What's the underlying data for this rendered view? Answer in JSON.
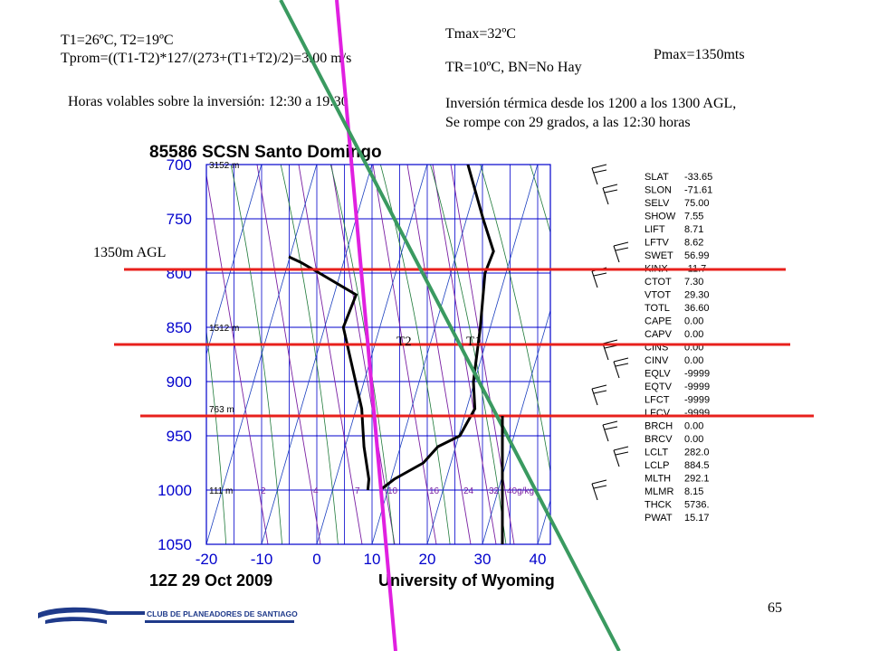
{
  "annotations": {
    "t1_t2": "T1=26ºC, T2=19ºC",
    "tprom": "Tprom=((T1-T2)*127/(273+(T1+T2)/2)=3.00 m/s",
    "tmax": "Tmax=32ºC",
    "pmax": "Pmax=1350mts",
    "tr_bn": "TR=10ºC, BN=No Hay",
    "horas": "Horas volables sobre la inversión: 12:30 a 19:30",
    "inversion_1": "Inversión térmica desde los 1200 a los 1300 AGL,",
    "inversion_2": "Se rompe con 29 grados, a las 12:30 horas",
    "agl_label": "1350m AGL",
    "label_t2": "T2",
    "label_t1": "T1"
  },
  "logo": {
    "text": "CLUB DE PLANEADORES DE SANTIAGO"
  },
  "page_number": "65",
  "colors": {
    "grid": "#0000cc",
    "mixing": "#7a1fa2",
    "dry_adiabat": "#1f7a3a",
    "red_line": "#e8201c",
    "magenta_line": "#e020e0",
    "green_line": "#3a9a60",
    "profile": "#000000"
  },
  "chart_data": {
    "type": "line",
    "title": "85586 SCSN Santo Domingo",
    "footer_left": "12Z 29 Oct 2009",
    "footer_right": "University of Wyoming",
    "x_ticks": [
      "-20",
      "-10",
      "0",
      "10",
      "20",
      "30",
      "40"
    ],
    "y_ticks": [
      "700",
      "750",
      "800",
      "850",
      "900",
      "950",
      "1000",
      "1050"
    ],
    "height_labels": [
      {
        "p": 700,
        "text": "3152 m"
      },
      {
        "p": 850,
        "text": "1512 m"
      },
      {
        "p": 925,
        "text": "763 m"
      },
      {
        "p": 1000,
        "text": "111 m"
      }
    ],
    "mixing_ratio_labels": [
      "2",
      "4",
      "7",
      "10",
      "16",
      "24",
      "32",
      "40g/kg"
    ],
    "temperature": [
      {
        "p": 1000,
        "t": 8.6
      },
      {
        "p": 990,
        "t": 10.6
      },
      {
        "p": 975,
        "t": 15.0
      },
      {
        "p": 960,
        "t": 16.8
      },
      {
        "p": 950,
        "t": 20.2
      },
      {
        "p": 925,
        "t": 21.5
      },
      {
        "p": 900,
        "t": 19.8
      },
      {
        "p": 850,
        "t": 18.2
      },
      {
        "p": 800,
        "t": 16.2
      },
      {
        "p": 780,
        "t": 16.6
      },
      {
        "p": 750,
        "t": 13.0
      },
      {
        "p": 700,
        "t": 7.4
      }
    ],
    "dewpoint": [
      {
        "p": 1000,
        "t": 6.4
      },
      {
        "p": 990,
        "t": 6.0
      },
      {
        "p": 960,
        "t": 3.4
      },
      {
        "p": 925,
        "t": 1.0
      },
      {
        "p": 850,
        "t": -6.6
      },
      {
        "p": 820,
        "t": -6.0
      },
      {
        "p": 800,
        "t": -13.8
      },
      {
        "p": 790,
        "t": -17.8
      },
      {
        "p": 785,
        "t": -20.2
      }
    ],
    "indices": [
      {
        "key": "SLAT",
        "value": "-33.65"
      },
      {
        "key": "SLON",
        "value": "-71.61"
      },
      {
        "key": "SELV",
        "value": "75.00"
      },
      {
        "key": "SHOW",
        "value": "7.55"
      },
      {
        "key": "LIFT",
        "value": "8.71"
      },
      {
        "key": "LFTV",
        "value": "8.62"
      },
      {
        "key": "SWET",
        "value": "56.99"
      },
      {
        "key": "KINX",
        "value": "-11.7"
      },
      {
        "key": "CTOT",
        "value": "7.30"
      },
      {
        "key": "VTOT",
        "value": "29.30"
      },
      {
        "key": "TOTL",
        "value": "36.60"
      },
      {
        "key": "CAPE",
        "value": "0.00"
      },
      {
        "key": "CAPV",
        "value": "0.00"
      },
      {
        "key": "CINS",
        "value": "0.00"
      },
      {
        "key": "CINV",
        "value": "0.00"
      },
      {
        "key": "EQLV",
        "value": "-9999"
      },
      {
        "key": "EQTV",
        "value": "-9999"
      },
      {
        "key": "LFCT",
        "value": "-9999"
      },
      {
        "key": "LFCV",
        "value": "-9999"
      },
      {
        "key": "BRCH",
        "value": "0.00"
      },
      {
        "key": "BRCV",
        "value": "0.00"
      },
      {
        "key": "LCLT",
        "value": "282.0"
      },
      {
        "key": "LCLP",
        "value": "884.5"
      },
      {
        "key": "MLTH",
        "value": "292.1"
      },
      {
        "key": "MLMR",
        "value": "8.15"
      },
      {
        "key": "THCK",
        "value": "5736."
      },
      {
        "key": "PWAT",
        "value": "15.17"
      }
    ],
    "reference_lines": [
      {
        "name": "1350m AGL",
        "p": 797
      },
      {
        "name": "T2",
        "p": 851
      },
      {
        "name": "",
        "p": 924
      }
    ]
  }
}
